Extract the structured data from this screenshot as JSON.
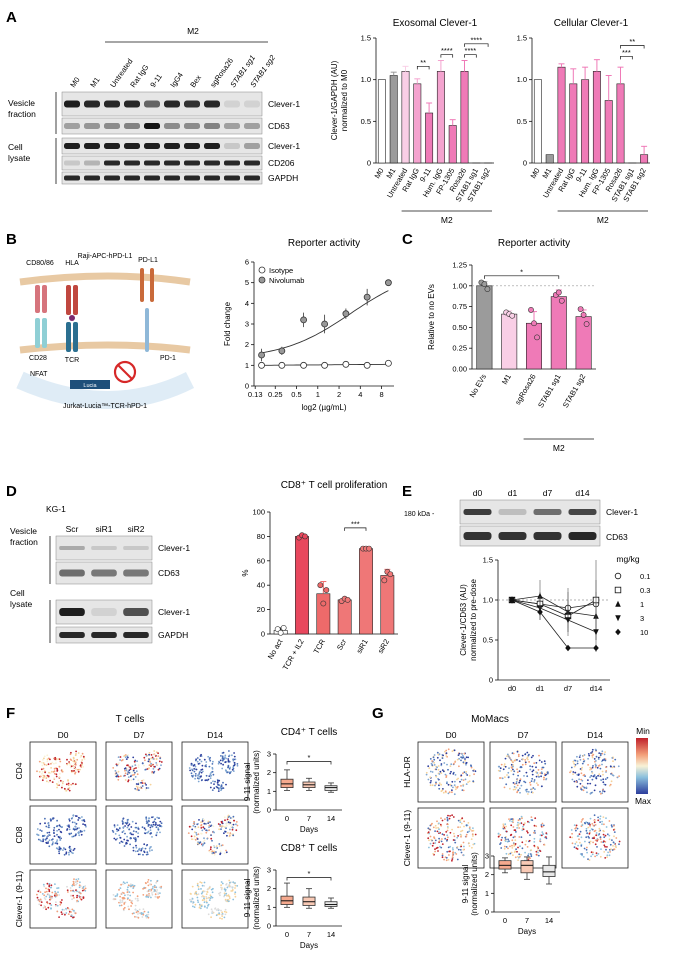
{
  "panelA": {
    "letter": "A",
    "group_label": "M2",
    "lane_labels": [
      "M0",
      "M1",
      "Untreated",
      "Rat IgG",
      "9-11",
      "IgG4",
      "Bex",
      "sgRosa26",
      "STAB1 sg1",
      "STAB1 sg2"
    ],
    "section_labels": [
      "Vesicle fraction",
      "Cell lysate"
    ],
    "band_labels": [
      "Clever-1",
      "CD63",
      "Clever-1",
      "CD206",
      "GAPDH"
    ]
  },
  "panelB": {
    "letter": "B",
    "schematic": {
      "top_cell": "Raji-APC-hPD-L1",
      "bottom_cell": "Jurkat-Lucia™-TCR-hPD-1",
      "labels": [
        "CD80/86",
        "HLA",
        "PD-L1",
        "CD28",
        "TCR",
        "PD-1",
        "NFAT",
        "Lucia"
      ]
    }
  },
  "panelC": {
    "letter": "C",
    "group_label": "M2"
  },
  "panelD": {
    "letter": "D",
    "cell_line": "KG-1",
    "lane_labels": [
      "Scr",
      "siR1",
      "siR2"
    ],
    "section_labels": [
      "Vesicle fraction",
      "Cell lysate"
    ],
    "band_labels": [
      "Clever-1",
      "CD63",
      "Clever-1",
      "GAPDH"
    ]
  },
  "panelE": {
    "letter": "E",
    "lane_labels": [
      "d0",
      "d1",
      "d7",
      "d14"
    ],
    "marker": "180 kDa -",
    "band_labels": [
      "Clever-1",
      "CD63"
    ]
  },
  "panelF": {
    "letter": "F",
    "title": "T cells",
    "col_labels": [
      "D0",
      "D7",
      "D14"
    ],
    "row_labels": [
      "CD4",
      "CD8",
      "Clever-1 (9-11)"
    ]
  },
  "panelG": {
    "letter": "G",
    "title": "MoMacs",
    "col_labels": [
      "D0",
      "D7",
      "D14"
    ],
    "row_labels": [
      "HLA-DR",
      "Clever-1 (9-11)"
    ],
    "colorbar": {
      "min_label": "Min",
      "max_label": "Max"
    }
  },
  "chart_data": [
    {
      "id": "A_exo",
      "type": "bar",
      "title": "Exosomal Clever-1",
      "ylabel": "Clever-1/GAPDH (AU) normalized to M0",
      "ylim": [
        0,
        1.5
      ],
      "yticks": [
        0,
        0.5,
        1.0,
        1.5
      ],
      "ytick_labels": [
        "0",
        "0.5",
        "1.0",
        "1.5"
      ],
      "categories": [
        "M0",
        "M1",
        "Untreated",
        "Rat IgG",
        "9-11",
        "Hum. IgG",
        "FP-1305",
        "Rosa26",
        "STAB1 sg1",
        "STAB1 sg2"
      ],
      "values": [
        1.0,
        1.05,
        1.1,
        0.95,
        0.6,
        1.1,
        0.45,
        1.1,
        0.0,
        0.0
      ],
      "errors": [
        0,
        0.04,
        0.06,
        0.06,
        0.12,
        0.13,
        0.07,
        0.13,
        0,
        0
      ],
      "colors": [
        "#ffffff",
        "#9b9b9b",
        "#f9cfe6",
        "#f4a3cf",
        "#ef7ab7",
        "#f4a3cf",
        "#ef7ab7",
        "#ef7ab7",
        "#ef7ab7",
        "#ef7ab7"
      ],
      "group_label": "M2",
      "group_range": [
        2,
        9
      ],
      "annotations": [
        {
          "from": 3,
          "to": 4,
          "label": "**",
          "y": 1.16
        },
        {
          "from": 5,
          "to": 6,
          "label": "****",
          "y": 1.3
        },
        {
          "from": 7,
          "to": 8,
          "label": "****",
          "y": 1.3
        },
        {
          "from": 7,
          "to": 9,
          "label": "****",
          "y": 1.43
        }
      ]
    },
    {
      "id": "A_cell",
      "type": "bar",
      "title": "Cellular Clever-1",
      "ylabel": "",
      "ylim": [
        0,
        1.5
      ],
      "yticks": [
        0,
        0.5,
        1.0,
        1.5
      ],
      "ytick_labels": [
        "0",
        "0.5",
        "1.0",
        "1.5"
      ],
      "categories": [
        "M0",
        "M1",
        "Untreated",
        "Rat IgG",
        "9-11",
        "Hum. IgG",
        "FP-1305",
        "Rosa26",
        "STAB1 sg1",
        "STAB1 sg2"
      ],
      "values": [
        1.0,
        0.1,
        1.15,
        0.95,
        1.0,
        1.1,
        0.75,
        0.95,
        0.0,
        0.1
      ],
      "errors": [
        0,
        0,
        0.04,
        0.18,
        0.15,
        0.14,
        0.3,
        0.2,
        0,
        0.1
      ],
      "colors": [
        "#ffffff",
        "#9b9b9b",
        "#ef7ab7",
        "#ef7ab7",
        "#ef7ab7",
        "#ef7ab7",
        "#ef7ab7",
        "#ef7ab7",
        "#ef7ab7",
        "#ef7ab7"
      ],
      "group_label": "M2",
      "group_range": [
        2,
        9
      ],
      "annotations": [
        {
          "from": 7,
          "to": 8,
          "label": "***",
          "y": 1.28
        },
        {
          "from": 7,
          "to": 9,
          "label": "**",
          "y": 1.41
        }
      ]
    },
    {
      "id": "B_reporter",
      "type": "scatter",
      "title": "Reporter activity",
      "xlabel": "log2 (µg/mL)",
      "ylabel": "Fold change",
      "x_ticks": [
        0.13,
        0.25,
        0.5,
        1,
        2,
        4,
        8
      ],
      "x_tick_labels": [
        "0.13",
        "0.25",
        "0.5",
        "1",
        "2",
        "4",
        "8"
      ],
      "ylim": [
        0,
        6
      ],
      "yticks": [
        0,
        1,
        2,
        3,
        4,
        5,
        6
      ],
      "series": [
        {
          "name": "Isotype",
          "x": [
            0.16,
            0.31,
            0.63,
            1.25,
            2.5,
            5,
            10
          ],
          "y": [
            1.0,
            1.0,
            1.0,
            1.0,
            1.05,
            1.0,
            1.1
          ],
          "err": [
            0.1,
            0.05,
            0.05,
            0.05,
            0.05,
            0.05,
            0.05
          ],
          "fill": "#ffffff"
        },
        {
          "name": "Nivolumab",
          "x": [
            0.16,
            0.31,
            0.63,
            1.25,
            2.5,
            5,
            10
          ],
          "y": [
            1.5,
            1.7,
            3.2,
            3.0,
            3.5,
            4.3,
            5.0
          ],
          "err": [
            0.3,
            0.2,
            0.35,
            0.45,
            0.25,
            0.4,
            0.1
          ],
          "fill": "#999999"
        }
      ],
      "legend": "top-left"
    },
    {
      "id": "C_reporter",
      "type": "bar",
      "title": "Reporter activity",
      "ylabel": "Relative to no EVs",
      "ylim": [
        0,
        1.25
      ],
      "yticks": [
        0,
        0.25,
        0.5,
        0.75,
        1.0,
        1.25
      ],
      "ytick_labels": [
        "0.00",
        "0.25",
        "0.50",
        "0.75",
        "1.00",
        "1.25"
      ],
      "categories": [
        "No EVs",
        "M1",
        "sgRosa26",
        "STAB1 sg1",
        "STAB1 sg2"
      ],
      "values": [
        1.0,
        0.66,
        0.55,
        0.87,
        0.63
      ],
      "errors": [
        0.05,
        0.04,
        0.14,
        0.08,
        0.08
      ],
      "points": [
        [
          1.04,
          1.02,
          0.96
        ],
        [
          0.68,
          0.66,
          0.64
        ],
        [
          0.71,
          0.55,
          0.38
        ],
        [
          0.89,
          0.92,
          0.82
        ],
        [
          0.72,
          0.65,
          0.54
        ]
      ],
      "colors": [
        "#9b9b9b",
        "#f9cfe6",
        "#ef7ab7",
        "#ef7ab7",
        "#ef7ab7"
      ],
      "group_label": "M2",
      "group_range": [
        2,
        4
      ],
      "reference_line": 1.0,
      "annotations": [
        {
          "from": 0,
          "to": 3,
          "label": "*",
          "y": 1.12
        }
      ]
    },
    {
      "id": "D_prolif",
      "type": "bar",
      "title": "CD8⁺ T cell proliferation",
      "ylabel": "%",
      "ylim": [
        0,
        100
      ],
      "yticks": [
        0,
        20,
        40,
        60,
        80,
        100
      ],
      "ytick_labels": [
        "0",
        "20",
        "40",
        "60",
        "80",
        "100"
      ],
      "categories": [
        "No act",
        "TCR + IL2",
        "TCR",
        "Scr",
        "siR1",
        "siR2"
      ],
      "values": [
        3,
        80,
        33,
        28,
        70,
        48
      ],
      "errors": [
        2,
        1.5,
        10,
        1.5,
        0.5,
        5
      ],
      "points": [
        [
          4,
          1,
          5
        ],
        [
          79,
          81,
          80
        ],
        [
          40,
          25,
          36
        ],
        [
          27,
          29,
          28
        ],
        [
          70,
          70,
          70
        ],
        [
          44,
          51,
          49
        ]
      ],
      "colors": [
        "#ffffff",
        "#e8475d",
        "#ee6a6a",
        "#ef7777",
        "#ef7777",
        "#ef7777"
      ],
      "annotations": [
        {
          "from": 3,
          "to": 4,
          "label": "***",
          "y": 87
        }
      ]
    },
    {
      "id": "E_pk",
      "type": "line",
      "title": "",
      "ylabel": "Clever-1/CD63 (AU) normalized to pre-dose",
      "ylim": [
        0,
        1.5
      ],
      "yticks": [
        0,
        0.5,
        1.0,
        1.5
      ],
      "ytick_labels": [
        "0",
        "0.5",
        "1.0",
        "1.5"
      ],
      "categories": [
        "d0",
        "d1",
        "d7",
        "d14"
      ],
      "legend_title": "mg/kg",
      "series": [
        {
          "name": "0.1",
          "values": [
            1.0,
            0.95,
            0.9,
            0.95
          ],
          "err": [
            0,
            0.15,
            0.25,
            0.3
          ],
          "marker": "circle-open"
        },
        {
          "name": "0.3",
          "values": [
            1.0,
            0.95,
            0.8,
            1.0
          ],
          "err": [
            0,
            0.1,
            0.2,
            0.5
          ],
          "marker": "square-open"
        },
        {
          "name": "1",
          "values": [
            1.0,
            1.05,
            0.85,
            0.8
          ],
          "err": [
            0,
            0.2,
            0.25,
            0.3
          ],
          "marker": "triangle"
        },
        {
          "name": "3",
          "values": [
            1.0,
            0.9,
            0.75,
            0.6
          ],
          "err": [
            0,
            0.15,
            0.2,
            0.25
          ],
          "marker": "triangle-down"
        },
        {
          "name": "10",
          "values": [
            1.0,
            0.85,
            0.4,
            0.4
          ],
          "err": [
            0,
            0.1,
            0,
            0
          ],
          "marker": "diamond"
        }
      ],
      "reference_line": 1.0
    },
    {
      "id": "F_cd4",
      "type": "box",
      "title": "CD4⁺ T cells",
      "xlabel": "Days",
      "ylabel": "9-11 signal (normalized units)",
      "ylim": [
        0,
        3
      ],
      "yticks": [
        0,
        1,
        2,
        3
      ],
      "categories": [
        "0",
        "7",
        "14"
      ],
      "boxes": [
        [
          1.05,
          1.2,
          1.4,
          1.65,
          2.15
        ],
        [
          1.05,
          1.2,
          1.35,
          1.5,
          1.7
        ],
        [
          0.95,
          1.05,
          1.2,
          1.3,
          1.45
        ]
      ],
      "colors": [
        "#f5a98e",
        "#f8c9b5",
        "#e8e8e8"
      ],
      "annotations": [
        {
          "from": 0,
          "to": 2,
          "label": "*",
          "y": 2.6
        }
      ]
    },
    {
      "id": "F_cd8",
      "type": "box",
      "title": "CD8⁺ T cells",
      "xlabel": "Days",
      "ylabel": "9-11 signal (normalized units)",
      "ylim": [
        0,
        3
      ],
      "yticks": [
        0,
        1,
        2,
        3
      ],
      "categories": [
        "0",
        "7",
        "14"
      ],
      "boxes": [
        [
          1.0,
          1.15,
          1.35,
          1.6,
          2.3
        ],
        [
          0.95,
          1.1,
          1.3,
          1.55,
          2.0
        ],
        [
          0.95,
          1.05,
          1.15,
          1.3,
          1.5
        ]
      ],
      "colors": [
        "#f5a98e",
        "#f8c9b5",
        "#e8e8e8"
      ],
      "annotations": [
        {
          "from": 0,
          "to": 2,
          "label": "*",
          "y": 2.6
        }
      ]
    },
    {
      "id": "G_momac",
      "type": "box",
      "title": "",
      "xlabel": "Days",
      "ylabel": "9-11 signal (normalized units)",
      "ylim": [
        0,
        3
      ],
      "yticks": [
        0,
        1,
        2,
        3
      ],
      "categories": [
        "0",
        "7",
        "14"
      ],
      "boxes": [
        [
          2.1,
          2.3,
          2.5,
          2.75,
          2.9
        ],
        [
          1.75,
          2.1,
          2.5,
          2.75,
          2.95
        ],
        [
          1.5,
          1.9,
          2.15,
          2.5,
          2.95
        ]
      ],
      "colors": [
        "#f5a98e",
        "#f8c9b5",
        "#e8e8e8"
      ]
    }
  ]
}
